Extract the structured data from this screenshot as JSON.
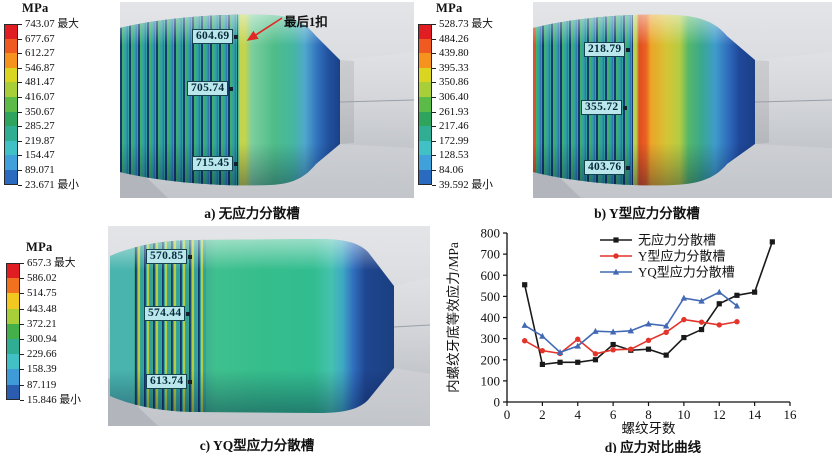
{
  "colors": {
    "tag_background": "#b9e7ec",
    "tag_border": "#14424e",
    "annotation_arrow": "#e02723",
    "axis": "#111111"
  },
  "palette": {
    "p11": [
      "#df1d23",
      "#ef5a20",
      "#f5931e",
      "#d9d520",
      "#a8ce38",
      "#5cba47",
      "#2fa45c",
      "#2fae93",
      "#41c0c5",
      "#3fa0da",
      "#2a6abf"
    ],
    "p9": [
      "#df1d23",
      "#f2711f",
      "#f2c71f",
      "#a8ce38",
      "#43b049",
      "#2fae93",
      "#41c0c5",
      "#3f9ad8",
      "#2a5cb0"
    ]
  },
  "panels": {
    "a": {
      "colorbar": {
        "unit": "MPa",
        "max_label": "最大",
        "min_label": "最小",
        "values": [
          "743.07",
          "677.67",
          "612.27",
          "546.87",
          "481.47",
          "416.07",
          "350.67",
          "285.27",
          "219.87",
          "154.47",
          "89.071",
          "23.671"
        ]
      },
      "tags": [
        "604.69",
        "705.74",
        "715.45"
      ],
      "annotation": "最后1扣",
      "caption": "a) 无应力分散槽"
    },
    "b": {
      "colorbar": {
        "unit": "MPa",
        "max_label": "最大",
        "min_label": "最小",
        "values": [
          "528.73",
          "484.26",
          "439.80",
          "395.33",
          "350.86",
          "306.40",
          "261.93",
          "217.46",
          "172.99",
          "128.53",
          "84.06",
          "39.592"
        ]
      },
      "tags": [
        "218.79",
        "355.72",
        "403.76"
      ],
      "caption": "b) Y型应力分散槽"
    },
    "c": {
      "colorbar": {
        "unit": "MPa",
        "max_label": "最大",
        "min_label": "最小",
        "values": [
          "657.3",
          "586.02",
          "514.75",
          "443.48",
          "372.21",
          "300.94",
          "229.66",
          "158.39",
          "87.119",
          "15.846"
        ]
      },
      "tags": [
        "570.85",
        "574.44",
        "613.74"
      ],
      "caption": "c) YQ型应力分散槽"
    },
    "d": {
      "caption": "d) 应力对比曲线"
    }
  },
  "chart_data": {
    "type": "line",
    "title": "",
    "xlabel": "螺纹牙数",
    "ylabel": "内螺纹牙底等效应力/MPa",
    "xlim": [
      0,
      16
    ],
    "ylim": [
      0,
      800
    ],
    "xticks": [
      0,
      2,
      4,
      6,
      8,
      10,
      12,
      14,
      16
    ],
    "yticks": [
      0,
      100,
      200,
      300,
      400,
      500,
      600,
      700,
      800
    ],
    "grid": false,
    "legend_position": "top-center",
    "series": [
      {
        "name": "无应力分散槽",
        "color": "#1a1a1a",
        "marker": "square",
        "x": [
          1,
          2,
          3,
          4,
          5,
          6,
          7,
          8,
          9,
          10,
          11,
          12,
          13,
          14,
          15
        ],
        "values": [
          555,
          178,
          188,
          188,
          200,
          272,
          245,
          250,
          222,
          305,
          343,
          465,
          505,
          520,
          758
        ]
      },
      {
        "name": "Y型应力分散槽",
        "color": "#e2342b",
        "marker": "circle",
        "x": [
          1,
          2,
          3,
          4,
          5,
          6,
          7,
          8,
          9,
          10,
          11,
          12,
          13
        ],
        "values": [
          290,
          243,
          230,
          297,
          228,
          247,
          250,
          292,
          330,
          390,
          378,
          365,
          380
        ]
      },
      {
        "name": "YQ型应力分散槽",
        "color": "#4169b4",
        "marker": "triangle",
        "x": [
          1,
          2,
          3,
          4,
          5,
          6,
          7,
          8,
          9,
          10,
          11,
          12,
          13
        ],
        "values": [
          363,
          312,
          235,
          265,
          335,
          332,
          337,
          370,
          360,
          492,
          478,
          520,
          455
        ]
      }
    ]
  }
}
